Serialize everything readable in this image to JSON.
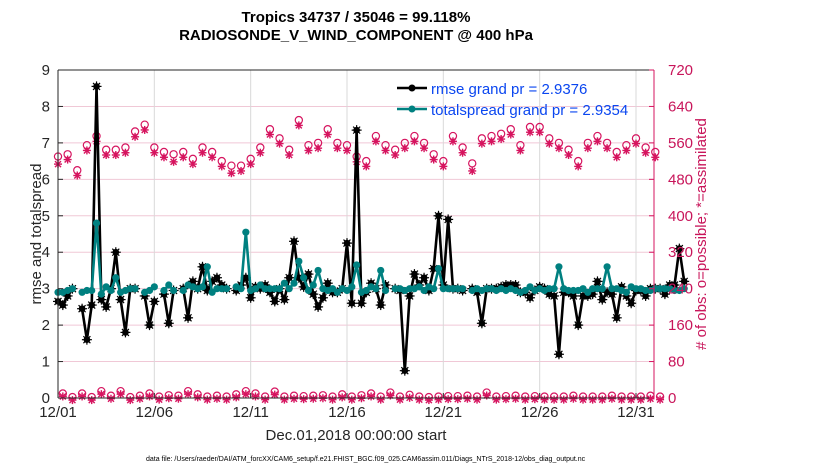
{
  "chart_data": {
    "type": "line",
    "title": "Tropics 34737 / 35046 = 99.118%",
    "subtitle": "RADIOSONDE_V_WIND_COMPONENT @ 400 hPa",
    "xlabel": "Dec.01,2018 00:00:00 start",
    "ylabel": "rmse and totalspread",
    "ylabel_right": "# of obs: o=possible; *=assimilated",
    "footer": "data file: /Users/raeder/DAI/ATM_forcXX/CAM6_setup/f.e21.FHIST_BGC.f09_025.CAM6assim.011/Diags_NTrS_2018-12/obs_diag_output.nc",
    "x_unit": "days since Dec.01,2018 00:00:00",
    "xlim": [
      0,
      30.75
    ],
    "x_step_days": 0.25,
    "x_tick_values": [
      0,
      5,
      10,
      15,
      20,
      25,
      30
    ],
    "x_tick_labels": [
      "12/01",
      "12/06",
      "12/11",
      "12/16",
      "12/21",
      "12/26",
      "12/31"
    ],
    "ylim": [
      0,
      9
    ],
    "y_ticks": [
      "0",
      "1",
      "2",
      "3",
      "4",
      "5",
      "6",
      "7",
      "8",
      "9"
    ],
    "ylim_right": [
      0,
      720
    ],
    "y_ticks_right": [
      "0",
      "80",
      "160",
      "240",
      "320",
      "400",
      "480",
      "560",
      "640",
      "720"
    ],
    "grid": true,
    "legend_position": "top-right",
    "colors": {
      "rmse": "#000000",
      "totalspread": "#008080",
      "obs": "#d6145f",
      "grid": "#f0c8d6",
      "xgrid": "#d9d9d9",
      "legend_text": "#0a46f0"
    },
    "series": [
      {
        "name": "rmse grand pr = 2.9376",
        "key": "rmse",
        "values": [
          2.65,
          2.55,
          2.8,
          3.0,
          null,
          2.45,
          1.6,
          2.55,
          8.55,
          2.7,
          2.5,
          3.0,
          4.0,
          2.7,
          1.8,
          3.0,
          3.0,
          null,
          2.8,
          2.0,
          2.65,
          null,
          2.85,
          2.05,
          2.95,
          null,
          3.0,
          2.2,
          3.2,
          3.0,
          3.6,
          2.95,
          3.2,
          3.3,
          3.1,
          3.0,
          null,
          2.95,
          3.1,
          3.3,
          2.75,
          3.05,
          3.0,
          3.1,
          2.9,
          2.65,
          3.0,
          2.7,
          3.3,
          4.3,
          3.3,
          3.05,
          3.4,
          2.85,
          2.5,
          2.75,
          3.15,
          2.9,
          2.9,
          3.0,
          4.25,
          2.6,
          7.35,
          2.6,
          2.9,
          3.15,
          3.0,
          2.55,
          3.1,
          null,
          3.0,
          2.95,
          0.75,
          2.8,
          3.4,
          3.1,
          3.3,
          2.95,
          3.55,
          5.0,
          3.1,
          4.9,
          3.0,
          3.0,
          2.95,
          null,
          3.0,
          2.9,
          2.05,
          3.0,
          3.0,
          3.0,
          3.05,
          3.1,
          3.1,
          3.1,
          2.9,
          2.9,
          2.75,
          2.95,
          3.05,
          3.0,
          2.85,
          2.8,
          1.2,
          2.9,
          2.9,
          2.8,
          2.0,
          2.8,
          2.8,
          2.85,
          3.2,
          2.7,
          2.9,
          2.85,
          2.2,
          3.05,
          2.8,
          2.6,
          2.95,
          2.95,
          2.8,
          3.0,
          3.0,
          3.0,
          2.85,
          3.1,
          3.1,
          4.1,
          3.2
        ],
        "marker": "asterisk-dot"
      },
      {
        "name": "totalspread grand pr = 2.9354",
        "key": "totalspread",
        "values": [
          2.9,
          2.9,
          2.95,
          3.0,
          null,
          2.9,
          2.95,
          2.95,
          4.8,
          2.85,
          3.05,
          2.95,
          3.3,
          2.9,
          2.95,
          3.0,
          3.0,
          null,
          2.9,
          2.95,
          3.05,
          null,
          2.95,
          3.1,
          2.95,
          null,
          2.95,
          3.1,
          3.05,
          3.0,
          3.05,
          3.6,
          2.9,
          3.0,
          3.0,
          3.0,
          null,
          3.05,
          3.0,
          4.55,
          2.95,
          3.0,
          3.1,
          3.0,
          3.0,
          3.0,
          3.0,
          3.15,
          3.0,
          3.15,
          3.75,
          3.3,
          2.95,
          3.1,
          3.5,
          3.0,
          2.95,
          3.0,
          2.9,
          3.0,
          2.95,
          3.05,
          3.65,
          2.9,
          2.95,
          3.05,
          3.0,
          3.5,
          2.95,
          null,
          3.0,
          3.0,
          2.95,
          3.0,
          3.0,
          3.05,
          2.95,
          3.05,
          3.0,
          3.55,
          3.0,
          3.0,
          3.0,
          3.0,
          3.0,
          null,
          2.95,
          3.0,
          2.95,
          3.0,
          3.0,
          2.95,
          3.0,
          2.95,
          3.0,
          2.95,
          2.9,
          2.95,
          3.05,
          2.95,
          3.0,
          2.95,
          3.0,
          3.0,
          3.6,
          3.0,
          2.95,
          2.95,
          2.95,
          3.0,
          2.9,
          3.0,
          3.0,
          3.0,
          3.6,
          3.0,
          3.0,
          2.95,
          2.9,
          3.05,
          3.0,
          3.0,
          2.95,
          2.95,
          3.0,
          3.0,
          3.0,
          3.0,
          2.95,
          2.95,
          3.0
        ],
        "marker": "dot"
      }
    ],
    "obs_counts": {
      "x_step_days": 0.25,
      "possible": [
        530,
        10,
        535,
        2,
        500,
        10,
        555,
        2,
        575,
        15,
        545,
        5,
        545,
        15,
        550,
        2,
        585,
        5,
        600,
        10,
        550,
        3,
        540,
        6,
        535,
        5,
        540,
        15,
        525,
        8,
        550,
        3,
        540,
        5,
        520,
        3,
        510,
        8,
        510,
        15,
        525,
        10,
        550,
        3,
        590,
        14,
        570,
        3,
        545,
        5,
        610,
        4,
        555,
        5,
        560,
        6,
        590,
        3,
        560,
        8,
        555,
        3,
        530,
        6,
        520,
        10,
        575,
        3,
        555,
        12,
        545,
        3,
        560,
        7,
        575,
        3,
        560,
        2,
        535,
        3,
        520,
        4,
        575,
        4,
        550,
        5,
        515,
        3,
        570,
        12,
        575,
        3,
        580,
        4,
        590,
        5,
        555,
        3,
        595,
        4,
        595,
        3,
        570,
        3,
        560,
        3,
        545,
        5,
        520,
        3,
        560,
        3,
        575,
        3,
        560,
        5,
        540,
        3,
        555,
        3,
        570,
        3,
        550,
        5,
        540,
        3
      ],
      "assimilated": [
        520,
        10,
        530,
        2,
        495,
        10,
        550,
        2,
        570,
        15,
        540,
        5,
        540,
        15,
        545,
        2,
        580,
        5,
        595,
        10,
        545,
        3,
        535,
        6,
        525,
        5,
        535,
        15,
        520,
        8,
        545,
        3,
        535,
        5,
        515,
        3,
        500,
        8,
        505,
        15,
        520,
        10,
        545,
        3,
        585,
        14,
        565,
        3,
        540,
        5,
        605,
        4,
        550,
        5,
        555,
        6,
        585,
        3,
        555,
        8,
        550,
        3,
        525,
        6,
        515,
        10,
        570,
        3,
        550,
        12,
        540,
        3,
        555,
        7,
        570,
        3,
        555,
        2,
        530,
        3,
        515,
        4,
        570,
        4,
        545,
        5,
        505,
        3,
        565,
        12,
        570,
        3,
        575,
        4,
        585,
        5,
        550,
        3,
        590,
        4,
        590,
        3,
        565,
        3,
        555,
        3,
        540,
        5,
        515,
        3,
        555,
        3,
        570,
        3,
        555,
        5,
        535,
        3,
        550,
        3,
        565,
        3,
        545,
        5,
        535,
        3
      ]
    }
  }
}
